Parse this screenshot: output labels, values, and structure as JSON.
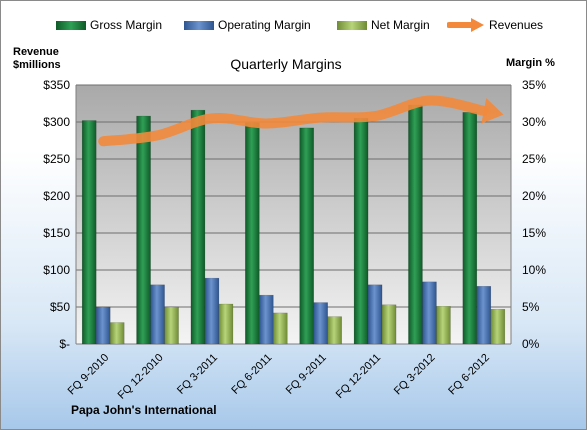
{
  "chart_data": {
    "type": "bar",
    "title": "Quarterly Margins",
    "left_axis_title": [
      "Revenue",
      "$millions"
    ],
    "right_axis_title": "Margin %",
    "footer": "Papa John's International",
    "categories": [
      "FQ 9-2010",
      "FQ 12-2010",
      "FQ 3-2011",
      "FQ 6-2011",
      "FQ 9-2011",
      "FQ 12-2011",
      "FQ 3-2012",
      "FQ 6-2012"
    ],
    "left_ticks": [
      "$-",
      "$50",
      "$100",
      "$150",
      "$200",
      "$250",
      "$300",
      "$350"
    ],
    "right_ticks": [
      "0%",
      "5%",
      "10%",
      "15%",
      "20%",
      "25%",
      "30%",
      "35%"
    ],
    "left_ylim": [
      0,
      350
    ],
    "right_ylim": [
      0,
      35
    ],
    "grid": true,
    "legend_position": "top",
    "series": [
      {
        "name": "Gross Margin",
        "type": "bar",
        "axis": "right",
        "color": "#1e7a3c",
        "values": [
          30.2,
          30.8,
          31.6,
          29.9,
          29.2,
          30.5,
          32.3,
          31.3
        ]
      },
      {
        "name": "Operating Margin",
        "type": "bar",
        "axis": "right",
        "color": "#4a72b0",
        "values": [
          5.0,
          8.0,
          8.9,
          6.6,
          5.6,
          8.0,
          8.4,
          7.8
        ]
      },
      {
        "name": "Net Margin",
        "type": "bar",
        "axis": "right",
        "color": "#9bbb59",
        "values": [
          2.9,
          5.0,
          5.4,
          4.2,
          3.7,
          5.3,
          5.1,
          4.7
        ]
      },
      {
        "name": "Revenues",
        "type": "line",
        "axis": "left",
        "color": "#f2893b",
        "values": [
          274,
          282,
          305,
          298,
          306,
          308,
          329,
          315
        ]
      }
    ]
  }
}
